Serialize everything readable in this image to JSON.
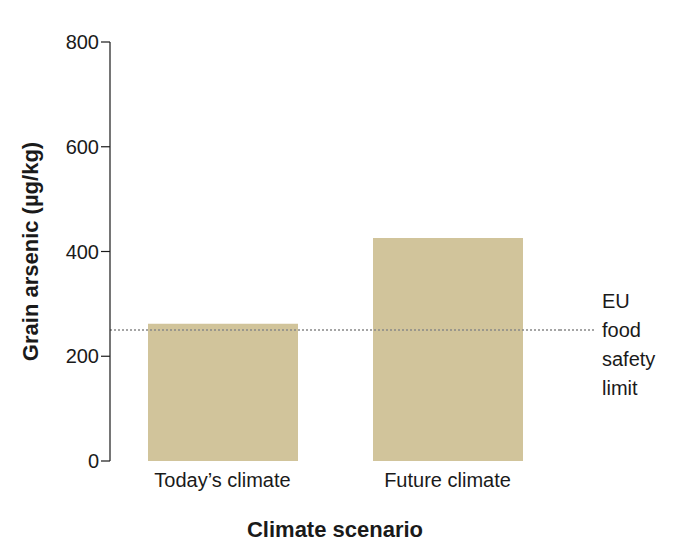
{
  "chart_data": {
    "type": "bar",
    "categories": [
      "Today’s climate",
      "Future climate"
    ],
    "values": [
      262,
      426
    ],
    "color": "#d1c49b",
    "ylim": [
      0,
      800
    ],
    "yticks": [
      0,
      200,
      400,
      600,
      800
    ],
    "x_label": "Climate scenario",
    "y_label": "Grain arsenic (µg/kg)",
    "reference_line": {
      "value": 250,
      "label": "EU food safety limit"
    },
    "grid": false
  }
}
